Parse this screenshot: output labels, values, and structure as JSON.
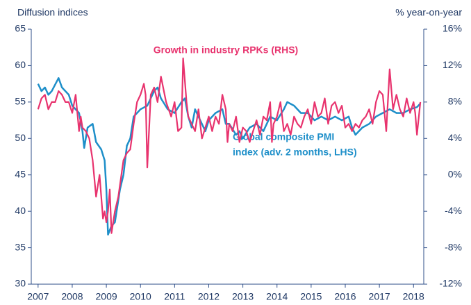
{
  "chart_data": {
    "type": "line",
    "y_label": "Diffusion indices",
    "y2_label": "% year-on-year",
    "annotations": {
      "rpk": "Growth in industry RPKs (RHS)",
      "pmi": [
        "Global composite PMI",
        "index (adv. 2 months, LHS)"
      ]
    },
    "xlim": [
      2006.8,
      2018.3
    ],
    "xticks": [
      2007,
      2008,
      2009,
      2010,
      2011,
      2012,
      2013,
      2014,
      2015,
      2016,
      2017,
      2018
    ],
    "ylim": [
      30,
      65
    ],
    "yticks": [
      30,
      35,
      40,
      45,
      50,
      55,
      60,
      65
    ],
    "y2lim": [
      -12,
      16
    ],
    "y2ticks": [
      {
        "value": -12,
        "label": "-12%"
      },
      {
        "value": -8,
        "label": "-8%"
      },
      {
        "value": -4,
        "label": "-4%"
      },
      {
        "value": 0,
        "label": "0%"
      },
      {
        "value": 4,
        "label": "4%"
      },
      {
        "value": 8,
        "label": "8%"
      },
      {
        "value": 12,
        "label": "12%"
      },
      {
        "value": 16,
        "label": "16%"
      }
    ],
    "series": [
      {
        "name": "Global composite PMI index (adv. 2 months, LHS)",
        "color": "#1e8fc9",
        "axis": "y",
        "x": [
          2007.0,
          2007.1,
          2007.2,
          2007.3,
          2007.4,
          2007.6,
          2007.7,
          2007.9,
          2008.0,
          2008.2,
          2008.3,
          2008.35,
          2008.45,
          2008.6,
          2008.7,
          2008.85,
          2008.95,
          2009.0,
          2009.05,
          2009.15,
          2009.25,
          2009.4,
          2009.5,
          2009.6,
          2009.7,
          2009.8,
          2009.9,
          2010.0,
          2010.2,
          2010.4,
          2010.5,
          2010.6,
          2010.8,
          2011.0,
          2011.2,
          2011.3,
          2011.4,
          2011.5,
          2011.6,
          2011.7,
          2011.9,
          2012.0,
          2012.2,
          2012.4,
          2012.5,
          2012.6,
          2012.8,
          2012.9,
          2013.0,
          2013.2,
          2013.4,
          2013.6,
          2013.8,
          2014.0,
          2014.2,
          2014.3,
          2014.5,
          2014.7,
          2014.9,
          2015.1,
          2015.3,
          2015.5,
          2015.7,
          2015.9,
          2016.1,
          2016.2,
          2016.3,
          2016.5,
          2016.7,
          2016.9,
          2017.1,
          2017.3,
          2017.5,
          2017.7,
          2017.9,
          2018.1,
          2018.2
        ],
        "values": [
          57.5,
          56.5,
          57,
          56,
          56.5,
          58.3,
          57,
          56,
          54.5,
          53.5,
          51,
          48.7,
          51.5,
          52,
          49.5,
          48.5,
          47,
          43,
          36.8,
          38,
          38.5,
          43,
          45,
          49,
          50,
          53,
          53.5,
          54,
          54.5,
          56.5,
          57,
          55.5,
          54,
          53.5,
          55,
          55.5,
          53,
          51.5,
          54,
          53,
          51,
          52.5,
          53.5,
          54,
          52,
          52,
          50.5,
          51,
          50,
          51.5,
          52,
          51,
          53,
          52.5,
          54,
          55,
          54.5,
          53.5,
          53.5,
          52.5,
          53,
          52.5,
          53,
          52.5,
          53,
          51.5,
          50.5,
          51.5,
          52,
          53,
          53.5,
          54,
          53.5,
          53.5,
          54,
          54.3,
          54.8
        ]
      },
      {
        "name": "Growth in industry RPKs (RHS)",
        "color": "#e8336e",
        "axis": "y2",
        "x": [
          2007.0,
          2007.1,
          2007.2,
          2007.3,
          2007.4,
          2007.5,
          2007.6,
          2007.7,
          2007.8,
          2007.9,
          2008.0,
          2008.1,
          2008.2,
          2008.25,
          2008.3,
          2008.4,
          2008.5,
          2008.6,
          2008.7,
          2008.8,
          2008.9,
          2008.95,
          2009.0,
          2009.05,
          2009.1,
          2009.15,
          2009.25,
          2009.35,
          2009.5,
          2009.6,
          2009.7,
          2009.8,
          2009.9,
          2010.0,
          2010.1,
          2010.15,
          2010.2,
          2010.3,
          2010.4,
          2010.5,
          2010.6,
          2010.75,
          2010.9,
          2011.0,
          2011.1,
          2011.2,
          2011.25,
          2011.35,
          2011.4,
          2011.5,
          2011.6,
          2011.7,
          2011.8,
          2011.9,
          2012.0,
          2012.1,
          2012.2,
          2012.3,
          2012.4,
          2012.5,
          2012.55,
          2012.6,
          2012.7,
          2012.8,
          2012.9,
          2013.0,
          2013.1,
          2013.2,
          2013.3,
          2013.4,
          2013.5,
          2013.6,
          2013.7,
          2013.8,
          2013.85,
          2013.9,
          2014.0,
          2014.1,
          2014.2,
          2014.3,
          2014.4,
          2014.5,
          2014.6,
          2014.7,
          2014.8,
          2014.9,
          2015.0,
          2015.1,
          2015.2,
          2015.3,
          2015.4,
          2015.5,
          2015.6,
          2015.7,
          2015.8,
          2015.9,
          2016.0,
          2016.1,
          2016.2,
          2016.3,
          2016.4,
          2016.5,
          2016.6,
          2016.7,
          2016.8,
          2016.9,
          2017.0,
          2017.1,
          2017.2,
          2017.3,
          2017.4,
          2017.5,
          2017.6,
          2017.7,
          2017.8,
          2017.9,
          2018.0,
          2018.05,
          2018.1,
          2018.2
        ],
        "values": [
          7.2,
          8.4,
          8.8,
          7.2,
          8,
          8,
          9.2,
          8.8,
          8,
          8,
          6.8,
          8.8,
          4.8,
          6.4,
          5.2,
          4.8,
          4,
          1.6,
          -2.4,
          0,
          -4.8,
          -4,
          -5.2,
          -4,
          -1.6,
          -6.4,
          -4,
          -2.4,
          1.6,
          2.4,
          2.8,
          5.6,
          8,
          8.8,
          10,
          8.8,
          0.8,
          8.8,
          9.6,
          8,
          10.8,
          8,
          6.4,
          8,
          4.8,
          5.2,
          12.8,
          8,
          6.4,
          5.6,
          4.8,
          7.2,
          4,
          5.2,
          6.4,
          4.8,
          6.4,
          5.6,
          8.8,
          7.2,
          3.6,
          5.6,
          4.8,
          6.4,
          3.6,
          5.2,
          4.8,
          3.6,
          4.8,
          6,
          4.4,
          6.4,
          6,
          8,
          3.6,
          5.6,
          6.4,
          8,
          4.8,
          5.6,
          4.4,
          6.4,
          5.6,
          5.2,
          6.4,
          7.2,
          5.6,
          8,
          6.4,
          6.8,
          8.4,
          5.6,
          7.6,
          8,
          6.8,
          7.6,
          5.2,
          5.6,
          4.8,
          5.6,
          5.2,
          6,
          6.4,
          7.2,
          5.6,
          8,
          9.2,
          8.8,
          4.8,
          11.6,
          7.2,
          8.8,
          7.2,
          6.4,
          8.4,
          6.8,
          8,
          6.8,
          4.4,
          8
        ]
      }
    ]
  }
}
